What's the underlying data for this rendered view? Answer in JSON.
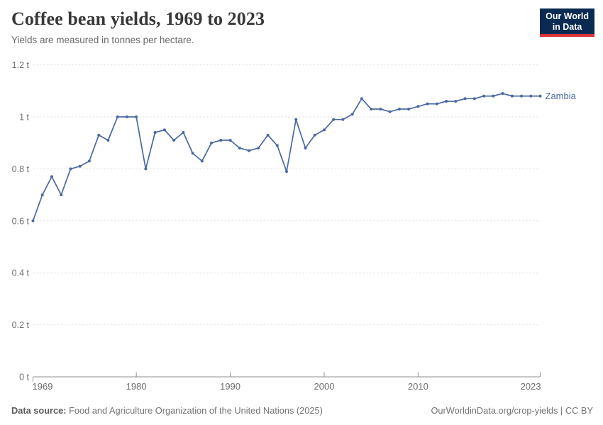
{
  "header": {
    "title": "Coffee bean yields, 1969 to 2023",
    "subtitle": "Yields are measured in tonnes per hectare."
  },
  "logo": {
    "line1": "Our World",
    "line2": "in Data"
  },
  "chart_data": {
    "type": "line",
    "title": "Coffee bean yields, 1969 to 2023",
    "ylabel": "tonnes per hectare",
    "xlabel": "",
    "xlim": [
      1969,
      2023
    ],
    "ylim": [
      0,
      1.2
    ],
    "grid": "horizontal-dashed",
    "legend_position": "end-of-line-label",
    "x_ticks": [
      {
        "value": 1969,
        "label": "1969"
      },
      {
        "value": 1980,
        "label": "1980"
      },
      {
        "value": 1990,
        "label": "1990"
      },
      {
        "value": 2000,
        "label": "2000"
      },
      {
        "value": 2010,
        "label": "2010"
      },
      {
        "value": 2023,
        "label": "2023"
      }
    ],
    "y_ticks": [
      {
        "value": 0,
        "label": "0 t"
      },
      {
        "value": 0.2,
        "label": "0.2 t"
      },
      {
        "value": 0.4,
        "label": "0.4 t"
      },
      {
        "value": 0.6,
        "label": "0.6 t"
      },
      {
        "value": 0.8,
        "label": "0.8 t"
      },
      {
        "value": 1,
        "label": "1 t"
      },
      {
        "value": 1.2,
        "label": "1.2 t"
      }
    ],
    "x": [
      1969,
      1970,
      1971,
      1972,
      1973,
      1974,
      1975,
      1976,
      1977,
      1978,
      1979,
      1980,
      1981,
      1982,
      1983,
      1984,
      1985,
      1986,
      1987,
      1988,
      1989,
      1990,
      1991,
      1992,
      1993,
      1994,
      1995,
      1996,
      1997,
      1998,
      1999,
      2000,
      2001,
      2002,
      2003,
      2004,
      2005,
      2006,
      2007,
      2008,
      2009,
      2010,
      2011,
      2012,
      2013,
      2014,
      2015,
      2016,
      2017,
      2018,
      2019,
      2020,
      2021,
      2022,
      2023
    ],
    "series": [
      {
        "name": "Zambia",
        "color": "#4a69a3",
        "values": [
          0.6,
          0.7,
          0.77,
          0.7,
          0.8,
          0.81,
          0.83,
          0.93,
          0.91,
          1.0,
          1.0,
          1.0,
          0.8,
          0.94,
          0.95,
          0.91,
          0.94,
          0.86,
          0.83,
          0.9,
          0.91,
          0.91,
          0.88,
          0.87,
          0.88,
          0.93,
          0.89,
          0.79,
          0.99,
          0.88,
          0.93,
          0.95,
          0.99,
          0.99,
          1.01,
          1.07,
          1.03,
          1.03,
          1.02,
          1.03,
          1.03,
          1.04,
          1.05,
          1.05,
          1.06,
          1.06,
          1.07,
          1.07,
          1.08,
          1.08,
          1.09,
          1.08,
          1.08,
          1.08,
          1.08
        ]
      }
    ]
  },
  "footer": {
    "source_label": "Data source:",
    "source_text": "Food and Agriculture Organization of the United Nations (2025)",
    "credit_url": "OurWorldinData.org/crop-yields",
    "separator": "|",
    "license": "CC BY"
  },
  "colors": {
    "line": "#4a69a3",
    "grid": "#d8d8d8",
    "axis": "#8f8f8f",
    "tick_label": "#6e6e6e",
    "logo_bg": "#0b2a51",
    "logo_accent": "#d8353a"
  }
}
